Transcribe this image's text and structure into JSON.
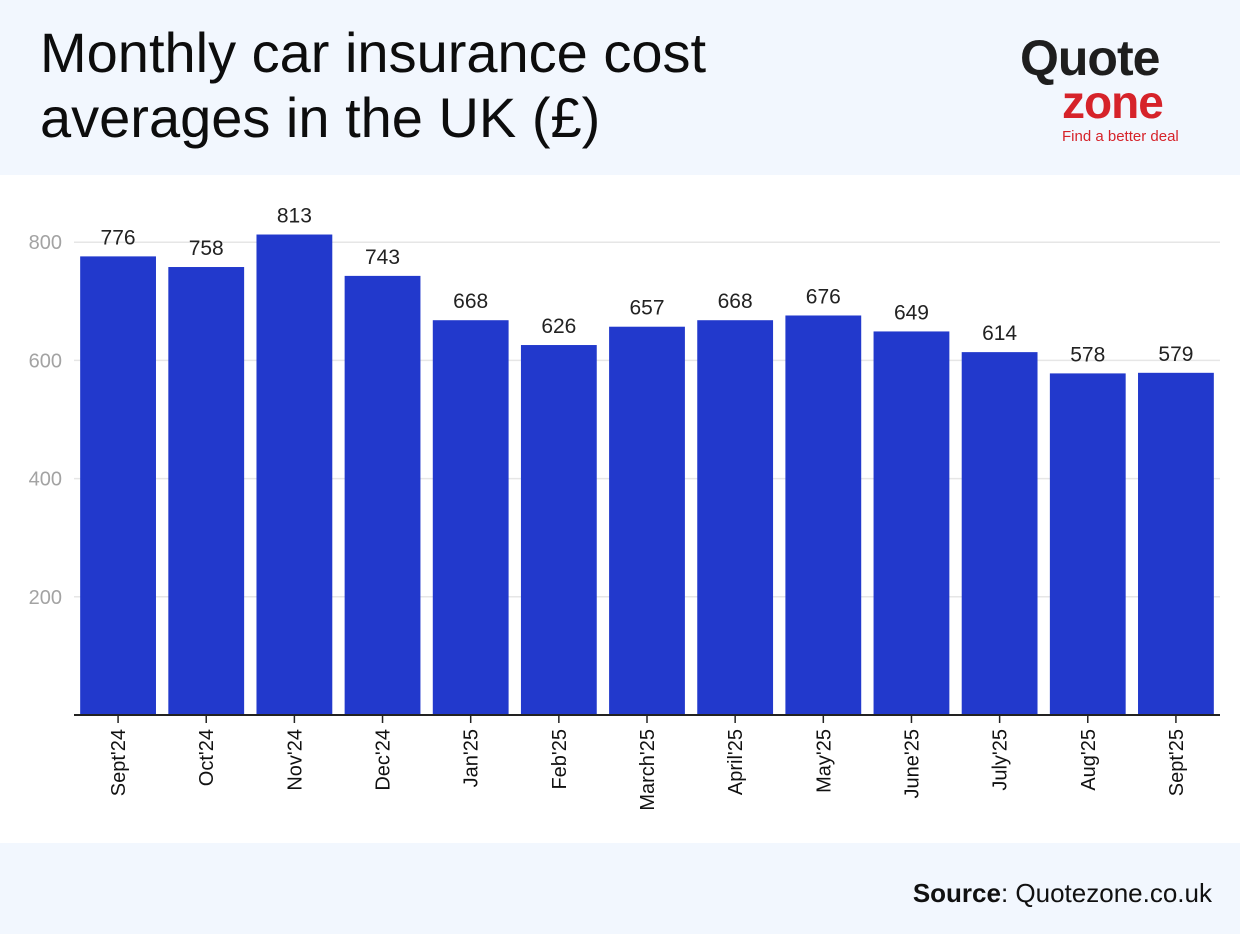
{
  "header": {
    "title": "Monthly car insurance cost\naverages in the UK (£)"
  },
  "logo": {
    "word_top": "Quote",
    "word_bottom": "zone",
    "tagline": "Find a better deal",
    "colors": {
      "dark": "#1e1e1e",
      "red": "#d6232a"
    }
  },
  "footer": {
    "source_label": "Source",
    "source_value": ": Quotezone.co.uk"
  },
  "chart_data": {
    "type": "bar",
    "categories": [
      "Sept'24",
      "Oct'24",
      "Nov'24",
      "Dec'24",
      "Jan'25",
      "Feb'25",
      "March'25",
      "April'25",
      "May'25",
      "June'25",
      "July'25",
      "Aug'25",
      "Sept'25"
    ],
    "values": [
      776,
      758,
      813,
      743,
      668,
      626,
      657,
      668,
      676,
      649,
      614,
      578,
      579
    ],
    "title": "Monthly car insurance cost averages in the UK (£)",
    "ylim": [
      0,
      800
    ],
    "yticks": [
      200,
      400,
      600,
      800
    ],
    "grid": true,
    "bar_color": "#2239cc",
    "data_labels": true
  }
}
